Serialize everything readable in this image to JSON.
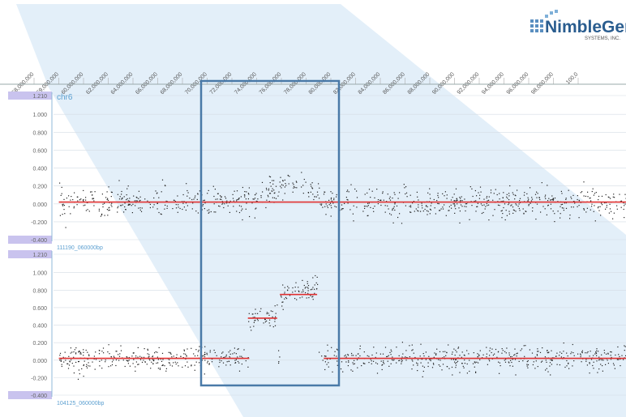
{
  "logo": {
    "name": "NimbleGen",
    "subtitle": "SYSTEMS, INC."
  },
  "axis_ticks": [
    "58,000,000",
    "59,000,000",
    "60,000,000",
    "62,000,000",
    "64,000,000",
    "66,000,000",
    "68,000,000",
    "70,000,000",
    "72,000,000",
    "74,000,000",
    "76,000,000",
    "78,000,000",
    "80,000,000",
    "82,000,000",
    "84,000,000",
    "86,000,000",
    "88,000,000",
    "90,000,000",
    "92,000,000",
    "94,000,000",
    "96,000,000",
    "98,000,000",
    "100,0"
  ],
  "colors": {
    "segment": "#e03030",
    "highlight_box": "#4a7aa8",
    "zoom_shade": "#d9eaf7",
    "ylabel_tab": "#c9c3ee"
  },
  "chart_data": [
    {
      "type": "scatter",
      "label": "chr6",
      "footer": "111190_060000bp",
      "ytick_labels": [
        "1.210",
        "1.000",
        "0.800",
        "0.600",
        "0.400",
        "0.200",
        "0.000",
        "-0.200",
        "-0.400"
      ],
      "ylim": [
        -0.4,
        1.21
      ],
      "xlim": [
        57.2,
        100.2
      ],
      "x_unit": "Mb",
      "segments": [
        {
          "x0": 57.6,
          "x1": 100.2,
          "y": 0.02
        }
      ],
      "bump": {
        "x0": 72.0,
        "x1": 78.0,
        "peak": 0.22
      },
      "noise": 0.08
    },
    {
      "type": "scatter",
      "label": "",
      "footer": "104125_060000bp",
      "ytick_labels": [
        "1.210",
        "1.000",
        "0.800",
        "0.600",
        "0.400",
        "0.200",
        "0.000",
        "-0.200",
        "-0.400"
      ],
      "ylim": [
        -0.4,
        1.21
      ],
      "xlim": [
        57.2,
        100.2
      ],
      "x_unit": "Mb",
      "segments": [
        {
          "x0": 57.6,
          "x1": 71.9,
          "y": 0.02
        },
        {
          "x0": 71.8,
          "x1": 74.0,
          "y": 0.48
        },
        {
          "x0": 74.2,
          "x1": 77.0,
          "y": 0.75
        },
        {
          "x0": 77.5,
          "x1": 100.2,
          "y": 0.02
        }
      ],
      "noise": 0.07
    }
  ]
}
